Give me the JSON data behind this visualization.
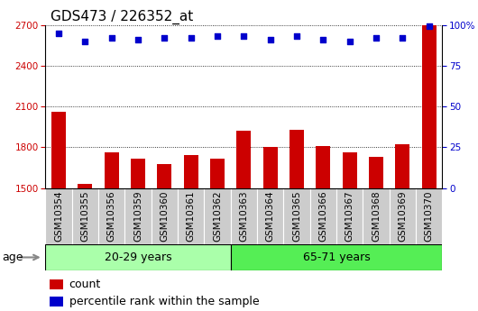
{
  "title": "GDS473 / 226352_at",
  "samples": [
    "GSM10354",
    "GSM10355",
    "GSM10356",
    "GSM10359",
    "GSM10360",
    "GSM10361",
    "GSM10362",
    "GSM10363",
    "GSM10364",
    "GSM10365",
    "GSM10366",
    "GSM10367",
    "GSM10368",
    "GSM10369",
    "GSM10370"
  ],
  "counts": [
    2060,
    1530,
    1760,
    1720,
    1680,
    1740,
    1720,
    1920,
    1800,
    1930,
    1810,
    1760,
    1730,
    1820,
    2700
  ],
  "percentiles": [
    95,
    90,
    92,
    91,
    92,
    92,
    93,
    93,
    91,
    93,
    91,
    90,
    92,
    92,
    99
  ],
  "bar_color": "#cc0000",
  "dot_color": "#0000cc",
  "ylim_left": [
    1500,
    2700
  ],
  "ylim_right": [
    0,
    100
  ],
  "yticks_left": [
    1500,
    1800,
    2100,
    2400,
    2700
  ],
  "yticks_right": [
    0,
    25,
    50,
    75,
    100
  ],
  "group1_label": "20-29 years",
  "group2_label": "65-71 years",
  "group1_count": 7,
  "group2_count": 8,
  "age_label": "age",
  "legend_count": "count",
  "legend_pct": "percentile rank within the sample",
  "bg_color_group1": "#aaffaa",
  "bg_color_group2": "#55ee55",
  "sample_box_color": "#cccccc",
  "plot_bg": "#ffffff",
  "grid_color": "#000000",
  "title_fontsize": 11,
  "tick_fontsize": 7.5,
  "label_fontsize": 9
}
